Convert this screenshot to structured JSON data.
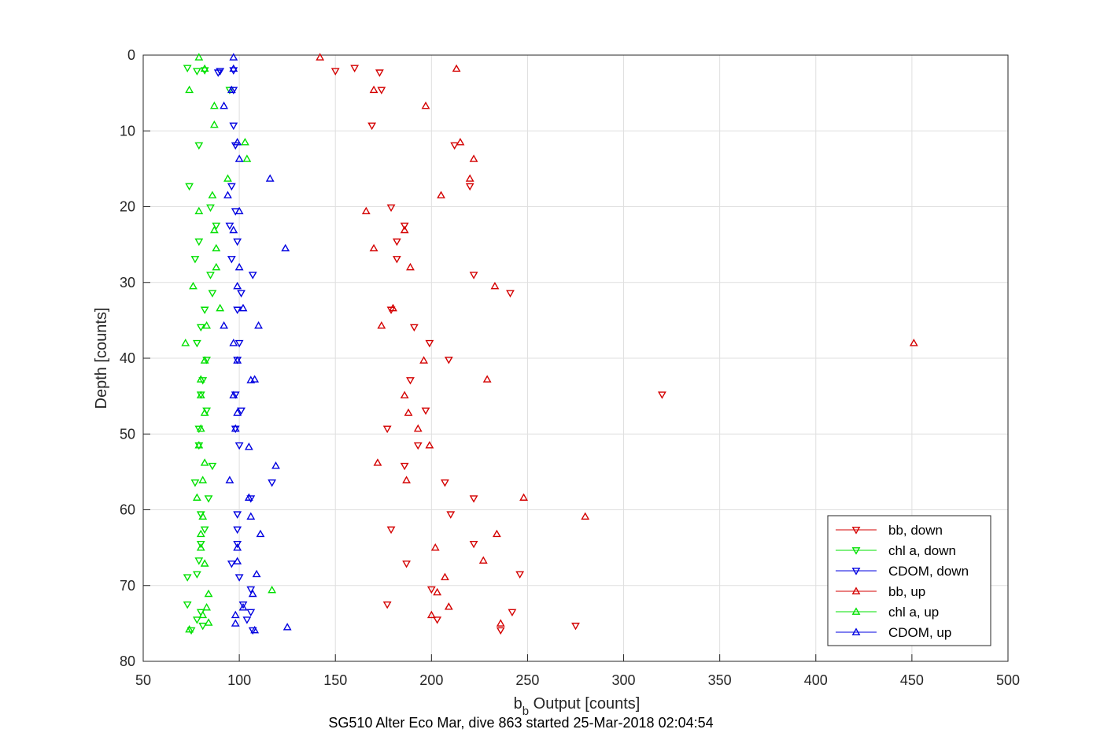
{
  "chart_data": {
    "type": "scatter",
    "xlabel_main": "b",
    "xlabel_sub": "b",
    "xlabel_rest": " Output [counts]",
    "ylabel": "Depth [counts]",
    "footer": "SG510 Alter Eco Mar, dive 863 started 25-Mar-2018 02:04:54",
    "xlim": [
      50,
      500
    ],
    "ylim": [
      0,
      80
    ],
    "y_reversed": true,
    "grid": true,
    "legend_position": "bottom-right",
    "x_ticks": [
      50,
      100,
      150,
      200,
      250,
      300,
      350,
      400,
      450,
      500
    ],
    "y_ticks": [
      0,
      10,
      20,
      30,
      40,
      50,
      60,
      70,
      80
    ],
    "series": [
      {
        "name": "bb, down",
        "color": "#d40000",
        "marker": "triangle-down",
        "points": [
          [
            150,
            2.1
          ],
          [
            160,
            1.7
          ],
          [
            173,
            2.3
          ],
          [
            174,
            4.6
          ],
          [
            169,
            9.3
          ],
          [
            212,
            11.9
          ],
          [
            220,
            17.3
          ],
          [
            179,
            20.1
          ],
          [
            186,
            22.5
          ],
          [
            182,
            24.6
          ],
          [
            182,
            26.9
          ],
          [
            222,
            29.0
          ],
          [
            241,
            31.4
          ],
          [
            179,
            33.6
          ],
          [
            191,
            35.9
          ],
          [
            199,
            38.0
          ],
          [
            209,
            40.2
          ],
          [
            189,
            42.9
          ],
          [
            320,
            44.8
          ],
          [
            197,
            46.9
          ],
          [
            177,
            49.3
          ],
          [
            193,
            51.5
          ],
          [
            186,
            54.2
          ],
          [
            207,
            56.4
          ],
          [
            222,
            58.5
          ],
          [
            210,
            60.6
          ],
          [
            179,
            62.6
          ],
          [
            222,
            64.5
          ],
          [
            187,
            67.1
          ],
          [
            246,
            68.5
          ],
          [
            200,
            70.5
          ],
          [
            177,
            72.5
          ],
          [
            242,
            73.5
          ],
          [
            203,
            74.5
          ],
          [
            275,
            75.3
          ],
          [
            236,
            75.9
          ]
        ]
      },
      {
        "name": "chl a, down",
        "color": "#00e000",
        "marker": "triangle-down",
        "points": [
          [
            73,
            1.7
          ],
          [
            78,
            2.1
          ],
          [
            82,
            2.0
          ],
          [
            95,
            4.6
          ],
          [
            79,
            11.9
          ],
          [
            74,
            17.3
          ],
          [
            85,
            20.1
          ],
          [
            88,
            22.5
          ],
          [
            79,
            24.6
          ],
          [
            77,
            26.9
          ],
          [
            85,
            29.0
          ],
          [
            86,
            31.4
          ],
          [
            82,
            33.6
          ],
          [
            80,
            35.9
          ],
          [
            78,
            38.0
          ],
          [
            83,
            40.2
          ],
          [
            81,
            42.9
          ],
          [
            80,
            44.8
          ],
          [
            83,
            46.9
          ],
          [
            79,
            49.3
          ],
          [
            79,
            51.5
          ],
          [
            86,
            54.2
          ],
          [
            77,
            56.4
          ],
          [
            84,
            58.5
          ],
          [
            80,
            60.6
          ],
          [
            82,
            62.6
          ],
          [
            80,
            64.5
          ],
          [
            79,
            66.7
          ],
          [
            78,
            68.5
          ],
          [
            73,
            68.9
          ],
          [
            73,
            72.5
          ],
          [
            80,
            73.5
          ],
          [
            78,
            74.5
          ],
          [
            81,
            75.3
          ],
          [
            75,
            75.9
          ]
        ]
      },
      {
        "name": "CDOM, down",
        "color": "#0000e0",
        "marker": "triangle-down",
        "points": [
          [
            90,
            2.1
          ],
          [
            97,
            2.0
          ],
          [
            97,
            4.6
          ],
          [
            89,
            2.3
          ],
          [
            97,
            9.3
          ],
          [
            98,
            11.9
          ],
          [
            96,
            17.3
          ],
          [
            98,
            20.6
          ],
          [
            95,
            22.5
          ],
          [
            99,
            24.6
          ],
          [
            96,
            26.9
          ],
          [
            107,
            29.0
          ],
          [
            101,
            31.4
          ],
          [
            99,
            33.6
          ],
          [
            100,
            38.0
          ],
          [
            99,
            40.2
          ],
          [
            98,
            44.8
          ],
          [
            101,
            46.9
          ],
          [
            98,
            49.3
          ],
          [
            100,
            51.5
          ],
          [
            117,
            56.4
          ],
          [
            106,
            58.5
          ],
          [
            99,
            60.6
          ],
          [
            99,
            62.6
          ],
          [
            99,
            64.5
          ],
          [
            96,
            67.1
          ],
          [
            100,
            68.9
          ],
          [
            106,
            70.5
          ],
          [
            102,
            72.5
          ],
          [
            106,
            73.5
          ],
          [
            104,
            74.5
          ],
          [
            107,
            75.9
          ]
        ]
      },
      {
        "name": "bb, up",
        "color": "#d40000",
        "marker": "triangle-up",
        "points": [
          [
            142,
            0.3
          ],
          [
            213,
            1.8
          ],
          [
            170,
            4.6
          ],
          [
            197,
            6.7
          ],
          [
            215,
            11.5
          ],
          [
            222,
            13.7
          ],
          [
            220,
            16.3
          ],
          [
            205,
            18.5
          ],
          [
            166,
            20.6
          ],
          [
            186,
            23.1
          ],
          [
            170,
            25.5
          ],
          [
            189,
            28.0
          ],
          [
            233,
            30.5
          ],
          [
            180,
            33.4
          ],
          [
            174,
            35.7
          ],
          [
            451,
            38.0
          ],
          [
            196,
            40.3
          ],
          [
            229,
            42.8
          ],
          [
            186,
            44.9
          ],
          [
            188,
            47.2
          ],
          [
            193,
            49.3
          ],
          [
            199,
            51.5
          ],
          [
            172,
            53.8
          ],
          [
            187,
            56.1
          ],
          [
            248,
            58.4
          ],
          [
            280,
            60.9
          ],
          [
            234,
            63.2
          ],
          [
            202,
            65.0
          ],
          [
            227,
            66.7
          ],
          [
            207,
            68.9
          ],
          [
            203,
            70.9
          ],
          [
            209,
            72.8
          ],
          [
            200,
            73.9
          ],
          [
            236,
            75.0
          ]
        ]
      },
      {
        "name": "chl a, up",
        "color": "#00e000",
        "marker": "triangle-up",
        "points": [
          [
            79,
            0.3
          ],
          [
            82,
            1.8
          ],
          [
            74,
            4.6
          ],
          [
            87,
            6.7
          ],
          [
            87,
            9.2
          ],
          [
            103,
            11.5
          ],
          [
            104,
            13.7
          ],
          [
            94,
            16.3
          ],
          [
            86,
            18.5
          ],
          [
            79,
            20.6
          ],
          [
            87,
            23.1
          ],
          [
            88,
            25.5
          ],
          [
            88,
            28.0
          ],
          [
            76,
            30.5
          ],
          [
            90,
            33.4
          ],
          [
            83,
            35.7
          ],
          [
            72,
            38.0
          ],
          [
            82,
            40.3
          ],
          [
            80,
            42.8
          ],
          [
            80,
            44.9
          ],
          [
            82,
            47.2
          ],
          [
            80,
            49.3
          ],
          [
            79,
            51.5
          ],
          [
            82,
            53.8
          ],
          [
            81,
            56.1
          ],
          [
            78,
            58.4
          ],
          [
            81,
            60.9
          ],
          [
            80,
            63.2
          ],
          [
            80,
            65.0
          ],
          [
            82,
            67.1
          ],
          [
            117,
            70.6
          ],
          [
            84,
            71.1
          ],
          [
            83,
            72.9
          ],
          [
            81,
            73.9
          ],
          [
            84,
            74.9
          ],
          [
            74,
            75.8
          ]
        ]
      },
      {
        "name": "CDOM, up",
        "color": "#0000e0",
        "marker": "triangle-up",
        "points": [
          [
            97,
            0.3
          ],
          [
            97,
            1.8
          ],
          [
            96,
            4.6
          ],
          [
            92,
            6.7
          ],
          [
            99,
            11.5
          ],
          [
            100,
            13.7
          ],
          [
            116,
            16.3
          ],
          [
            94,
            18.5
          ],
          [
            100,
            20.6
          ],
          [
            97,
            23.1
          ],
          [
            124,
            25.5
          ],
          [
            100,
            28.0
          ],
          [
            99,
            30.5
          ],
          [
            102,
            33.4
          ],
          [
            110,
            35.7
          ],
          [
            92,
            35.7
          ],
          [
            97,
            38.0
          ],
          [
            99,
            40.3
          ],
          [
            108,
            42.8
          ],
          [
            106,
            42.9
          ],
          [
            97,
            44.9
          ],
          [
            99,
            47.2
          ],
          [
            98,
            49.3
          ],
          [
            105,
            51.7
          ],
          [
            119,
            54.2
          ],
          [
            95,
            56.1
          ],
          [
            105,
            58.4
          ],
          [
            106,
            60.9
          ],
          [
            111,
            63.2
          ],
          [
            99,
            65.0
          ],
          [
            99,
            66.8
          ],
          [
            109,
            68.5
          ],
          [
            107,
            71.1
          ],
          [
            102,
            72.9
          ],
          [
            98,
            73.9
          ],
          [
            98,
            75.0
          ],
          [
            125,
            75.5
          ],
          [
            108,
            75.9
          ]
        ]
      }
    ]
  }
}
